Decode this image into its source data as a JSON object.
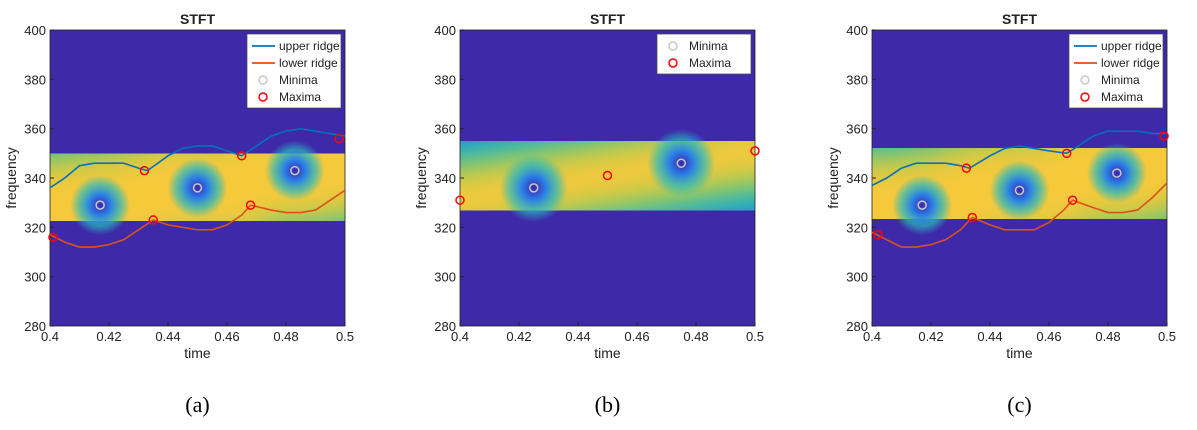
{
  "chart_data": [
    {
      "type": "spectrogram",
      "title": "STFT",
      "xlabel": "time",
      "ylabel": "frequency",
      "caption": "(a)",
      "xlim": [
        0.4,
        0.5
      ],
      "ylim": [
        280,
        400
      ],
      "xticks": [
        0.4,
        0.42,
        0.44,
        0.46,
        0.48,
        0.5
      ],
      "yticks": [
        280,
        300,
        320,
        340,
        360,
        380,
        400
      ],
      "legend": "upper right",
      "series": [
        {
          "name": "upper ridge",
          "color": "#0072bd",
          "style": "line",
          "x": [
            0.4,
            0.405,
            0.41,
            0.415,
            0.42,
            0.425,
            0.43,
            0.433,
            0.44,
            0.445,
            0.45,
            0.455,
            0.46,
            0.465,
            0.47,
            0.475,
            0.48,
            0.485,
            0.49,
            0.495,
            0.5
          ],
          "values": [
            336,
            340,
            345,
            346,
            346,
            346,
            344,
            343,
            349,
            352,
            353,
            353,
            351,
            349,
            353,
            357,
            359,
            360,
            359,
            358,
            357
          ]
        },
        {
          "name": "lower ridge",
          "color": "#d95319",
          "style": "line",
          "x": [
            0.4,
            0.405,
            0.41,
            0.415,
            0.42,
            0.425,
            0.43,
            0.435,
            0.44,
            0.445,
            0.45,
            0.455,
            0.46,
            0.465,
            0.468,
            0.475,
            0.48,
            0.485,
            0.49,
            0.495,
            0.5
          ],
          "values": [
            317,
            314,
            312,
            312,
            313,
            315,
            319,
            323,
            321,
            320,
            319,
            319,
            321,
            325,
            329,
            327,
            326,
            326,
            327,
            331,
            335
          ]
        },
        {
          "name": "Minima",
          "color": "#c8c8c8",
          "style": "marker",
          "x": [
            0.417,
            0.45,
            0.483
          ],
          "values": [
            329,
            336,
            343
          ]
        },
        {
          "name": "Maxima",
          "color": "#ff0000",
          "style": "marker",
          "x": [
            0.401,
            0.432,
            0.435,
            0.465,
            0.468,
            0.498
          ],
          "values": [
            316,
            343,
            323,
            349,
            329,
            356
          ]
        }
      ]
    },
    {
      "type": "spectrogram",
      "title": "STFT",
      "xlabel": "time",
      "ylabel": "frequency",
      "caption": "(b)",
      "xlim": [
        0.4,
        0.5
      ],
      "ylim": [
        280,
        400
      ],
      "xticks": [
        0.4,
        0.42,
        0.44,
        0.46,
        0.48,
        0.5
      ],
      "yticks": [
        280,
        300,
        320,
        340,
        360,
        380,
        400
      ],
      "legend": "upper right",
      "series": [
        {
          "name": "Minima",
          "color": "#c8c8c8",
          "style": "marker",
          "x": [
            0.425,
            0.475
          ],
          "values": [
            336,
            346
          ]
        },
        {
          "name": "Maxima",
          "color": "#ff0000",
          "style": "marker",
          "x": [
            0.4,
            0.45,
            0.5
          ],
          "values": [
            331,
            341,
            351
          ]
        }
      ]
    },
    {
      "type": "spectrogram",
      "title": "STFT",
      "xlabel": "time",
      "ylabel": "frequency",
      "caption": "(c)",
      "xlim": [
        0.4,
        0.5
      ],
      "ylim": [
        280,
        400
      ],
      "xticks": [
        0.4,
        0.42,
        0.44,
        0.46,
        0.48,
        0.5
      ],
      "yticks": [
        280,
        300,
        320,
        340,
        360,
        380,
        400
      ],
      "legend": "upper right",
      "series": [
        {
          "name": "upper ridge",
          "color": "#0072bd",
          "style": "line",
          "x": [
            0.4,
            0.405,
            0.41,
            0.415,
            0.42,
            0.425,
            0.43,
            0.433,
            0.44,
            0.445,
            0.45,
            0.455,
            0.46,
            0.466,
            0.47,
            0.475,
            0.48,
            0.485,
            0.49,
            0.495,
            0.5
          ],
          "values": [
            337,
            340,
            344,
            346,
            346,
            346,
            345,
            344,
            349,
            352,
            353,
            352,
            351,
            350,
            353,
            357,
            359,
            359,
            359,
            358,
            358
          ]
        },
        {
          "name": "lower ridge",
          "color": "#d95319",
          "style": "line",
          "x": [
            0.4,
            0.405,
            0.41,
            0.415,
            0.42,
            0.425,
            0.43,
            0.434,
            0.44,
            0.445,
            0.45,
            0.455,
            0.46,
            0.465,
            0.468,
            0.475,
            0.48,
            0.485,
            0.49,
            0.495,
            0.5
          ],
          "values": [
            318,
            315,
            312,
            312,
            313,
            315,
            319,
            324,
            321,
            319,
            319,
            319,
            322,
            327,
            331,
            328,
            326,
            326,
            327,
            332,
            338
          ]
        },
        {
          "name": "Minima",
          "color": "#c8c8c8",
          "style": "marker",
          "x": [
            0.417,
            0.45,
            0.483
          ],
          "values": [
            329,
            335,
            342
          ]
        },
        {
          "name": "Maxima",
          "color": "#ff0000",
          "style": "marker",
          "x": [
            0.402,
            0.432,
            0.434,
            0.466,
            0.468,
            0.499
          ],
          "values": [
            317,
            344,
            324,
            350,
            331,
            357
          ]
        }
      ]
    }
  ]
}
